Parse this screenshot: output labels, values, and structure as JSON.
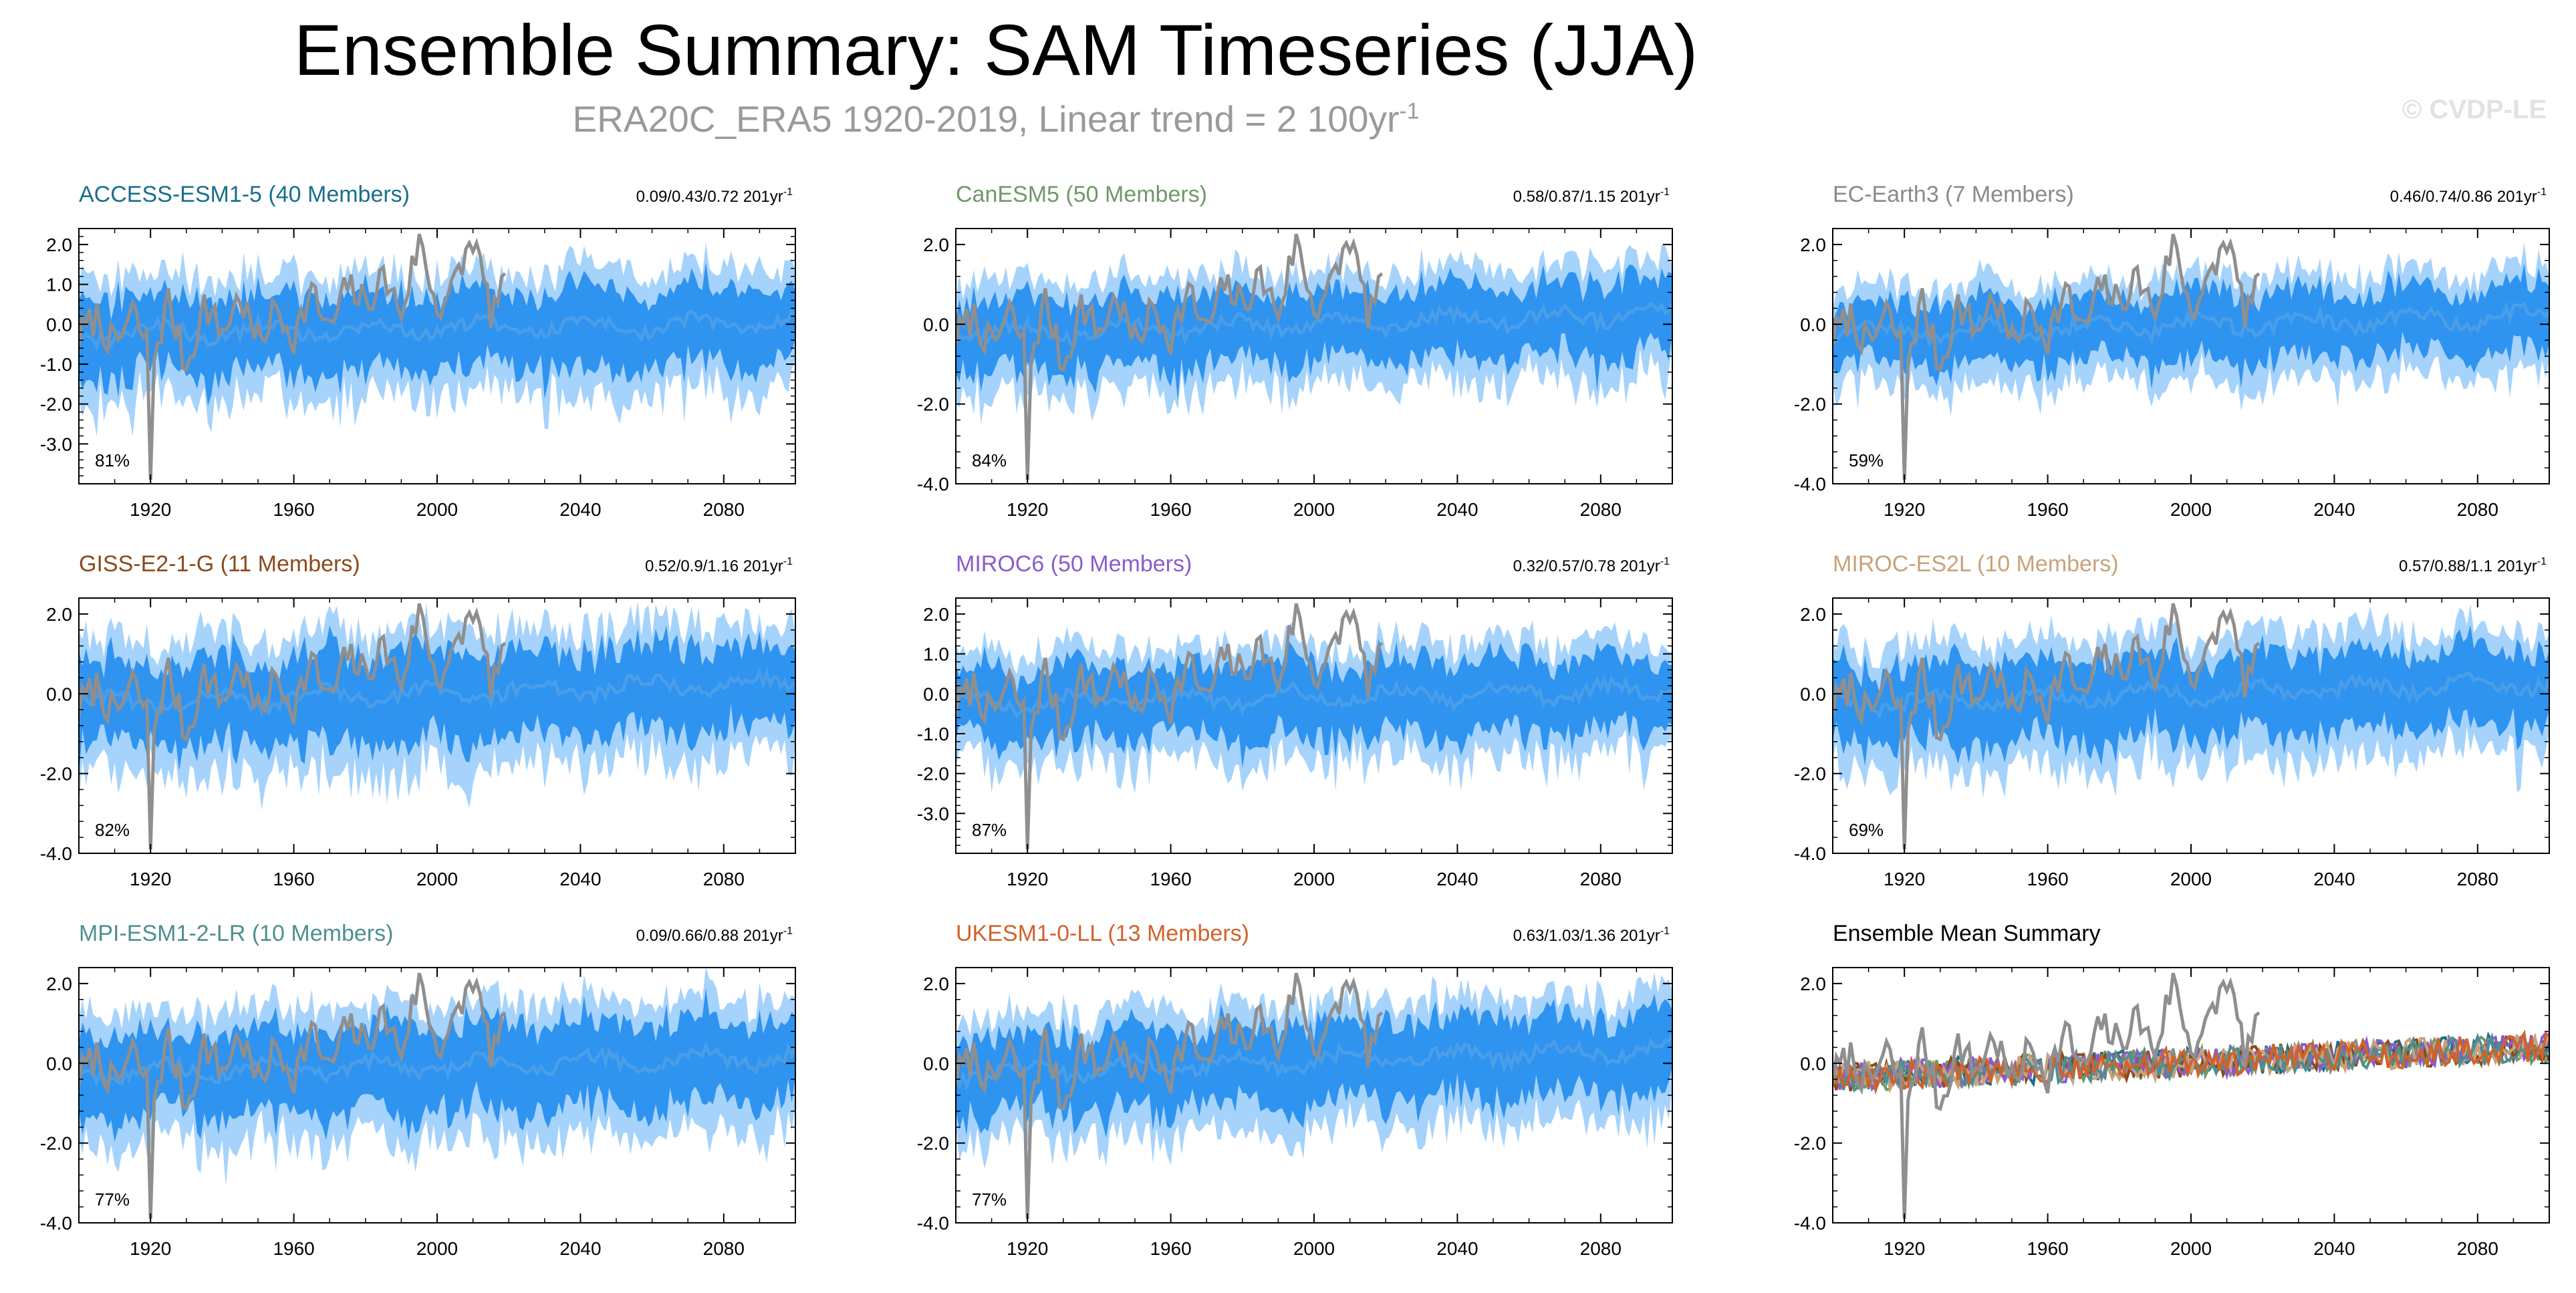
{
  "figure": {
    "title": "Ensemble Summary: SAM Timeseries (JJA)",
    "subtitle_main": "ERA20C_ERA5 1920-2019, Linear trend = 2 100yr",
    "subtitle_sup": "-1",
    "watermark": "© CVDP-LE",
    "colors": {
      "band_outer": "#a6d3fb",
      "band_inner": "#2f93f0",
      "ensemble_mean": "#4a9ee8",
      "observations": "#8f8f8f"
    },
    "panels": [
      {
        "title": "ACCESS-ESM1-5 (40 Members)",
        "title_color": "#1a6e8c",
        "trend_text": "0.09/0.43/0.72 201yr",
        "trend_sup": "-1",
        "percent": "81%",
        "yticks": [
          "2.0",
          "1.0",
          "0.0",
          "-1.0",
          "-2.0",
          "-3.0"
        ],
        "ytick_values": [
          2,
          1,
          0,
          -1,
          -2,
          -3
        ],
        "ylim": [
          -4,
          2.4
        ],
        "band_amp": 1.2,
        "trend": 0.43
      },
      {
        "title": "CanESM5 (50 Members)",
        "title_color": "#6f9968",
        "trend_text": "0.58/0.87/1.15 201yr",
        "trend_sup": "-1",
        "percent": "84%",
        "yticks": [
          "2.0",
          "0.0",
          "-2.0",
          "-4.0"
        ],
        "ytick_values": [
          2,
          0,
          -2,
          -4
        ],
        "ylim": [
          -4,
          2.4
        ],
        "band_amp": 1.1,
        "trend": 0.87
      },
      {
        "title": "EC-Earth3 (7 Members)",
        "title_color": "#8a8a8a",
        "trend_text": "0.46/0.74/0.86 201yr",
        "trend_sup": "-1",
        "percent": "59%",
        "yticks": [
          "2.0",
          "0.0",
          "-2.0",
          "-4.0"
        ],
        "ytick_values": [
          2,
          0,
          -2,
          -4
        ],
        "ylim": [
          -4,
          2.4
        ],
        "band_amp": 1.0,
        "trend": 0.74
      },
      {
        "title": "GISS-E2-1-G (11 Members)",
        "title_color": "#8b4a1c",
        "trend_text": "0.52/0.9/1.16 201yr",
        "trend_sup": "-1",
        "percent": "82%",
        "yticks": [
          "2.0",
          "0.0",
          "-2.0",
          "-4.0"
        ],
        "ytick_values": [
          2,
          0,
          -2,
          -4
        ],
        "ylim": [
          -4,
          2.4
        ],
        "band_amp": 1.3,
        "trend": 0.9
      },
      {
        "title": "MIROC6 (50 Members)",
        "title_color": "#8a5ccc",
        "trend_text": "0.32/0.57/0.78 201yr",
        "trend_sup": "-1",
        "percent": "87%",
        "yticks": [
          "2.0",
          "1.0",
          "0.0",
          "-1.0",
          "-2.0",
          "-3.0"
        ],
        "ytick_values": [
          2,
          1,
          0,
          -1,
          -2,
          -3
        ],
        "ylim": [
          -4,
          2.4
        ],
        "band_amp": 1.1,
        "trend": 0.57
      },
      {
        "title": "MIROC-ES2L (10 Members)",
        "title_color": "#c8a27a",
        "trend_text": "0.57/0.88/1.1 201yr",
        "trend_sup": "-1",
        "percent": "69%",
        "yticks": [
          "2.0",
          "0.0",
          "-2.0",
          "-4.0"
        ],
        "ytick_values": [
          2,
          0,
          -2,
          -4
        ],
        "ylim": [
          -4,
          2.4
        ],
        "band_amp": 1.2,
        "trend": 0.88
      },
      {
        "title": "MPI-ESM1-2-LR (10 Members)",
        "title_color": "#4e8f8f",
        "trend_text": "0.09/0.66/0.88 201yr",
        "trend_sup": "-1",
        "percent": "77%",
        "yticks": [
          "2.0",
          "0.0",
          "-2.0",
          "-4.0"
        ],
        "ytick_values": [
          2,
          0,
          -2,
          -4
        ],
        "ylim": [
          -4,
          2.4
        ],
        "band_amp": 1.3,
        "trend": 0.66
      },
      {
        "title": "UKESM1-0-LL (13 Members)",
        "title_color": "#d2622a",
        "trend_text": "0.63/1.03/1.36 201yr",
        "trend_sup": "-1",
        "percent": "77%",
        "yticks": [
          "2.0",
          "0.0",
          "-2.0",
          "-4.0"
        ],
        "ytick_values": [
          2,
          0,
          -2,
          -4
        ],
        "ylim": [
          -4,
          2.4
        ],
        "band_amp": 1.2,
        "trend": 1.03
      },
      {
        "title": "Ensemble Mean Summary",
        "title_color": "#000000",
        "summary": true,
        "yticks": [
          "2.0",
          "0.0",
          "-2.0",
          "-4.0"
        ],
        "ytick_values": [
          2,
          0,
          -2,
          -4
        ],
        "ylim": [
          -4,
          2.4
        ]
      }
    ],
    "xticks": [
      "1920",
      "1960",
      "2000",
      "2040",
      "2080"
    ],
    "xtick_values": [
      1920,
      1960,
      2000,
      2040,
      2080
    ]
  },
  "chart_data": {
    "type": "line",
    "xlim": [
      1900,
      2100
    ],
    "ylim": [
      -4,
      2.4
    ],
    "observations_period": [
      1900,
      2019
    ],
    "observations_sample": {
      "x": [
        1900,
        1905,
        1910,
        1915,
        1919,
        1920,
        1921,
        1925,
        1930,
        1935,
        1940,
        1945,
        1950,
        1955,
        1960,
        1965,
        1970,
        1975,
        1980,
        1985,
        1990,
        1995,
        2000,
        2005,
        2010,
        2015,
        2019
      ],
      "y": [
        -0.3,
        0.2,
        -0.6,
        0.3,
        -0.5,
        -3.9,
        -0.8,
        0.6,
        -1.1,
        0.5,
        -0.2,
        0.7,
        -0.5,
        0.4,
        -0.3,
        0.8,
        -0.2,
        1.0,
        0.5,
        1.2,
        0.3,
        2.1,
        0.4,
        1.0,
        2.2,
        0.3,
        0.9
      ]
    },
    "ensemble_mean_trend_approx": {
      "x": [
        1900,
        2000,
        2100
      ],
      "y": [
        -0.2,
        0.1,
        0.3
      ]
    }
  }
}
